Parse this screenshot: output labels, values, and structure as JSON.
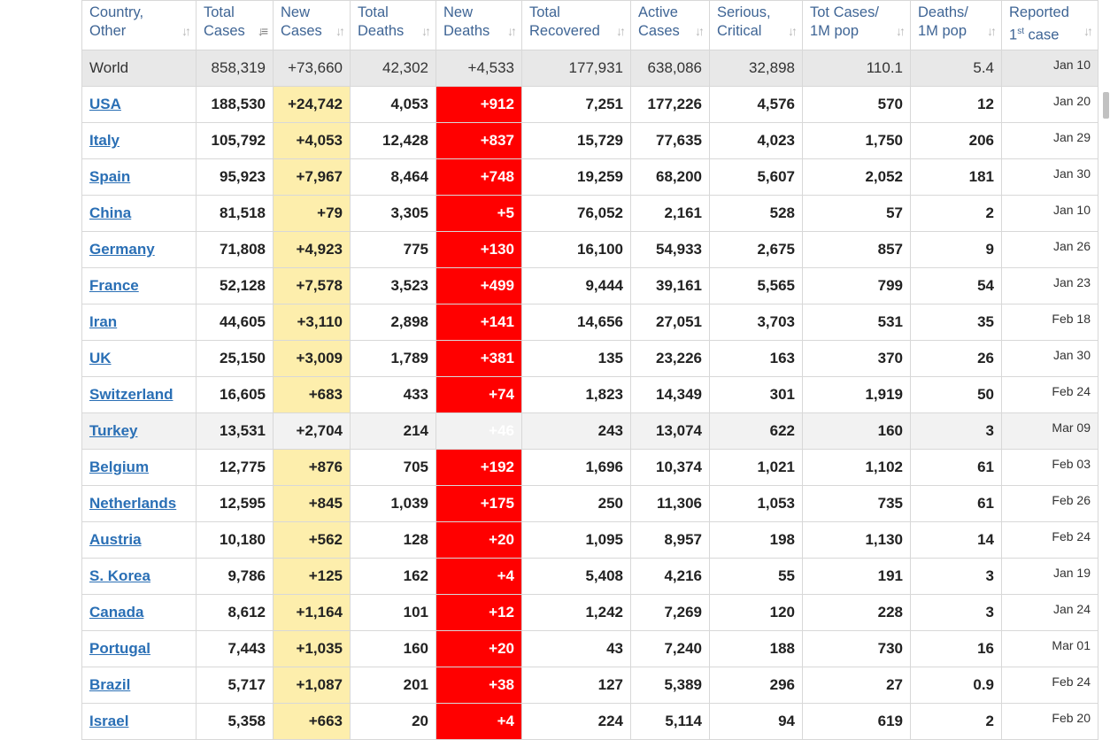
{
  "headers": [
    {
      "line1": "Country,",
      "line2": "Other",
      "sort_icon": "sort-arrows-icon"
    },
    {
      "line1": "Total",
      "line2": "Cases",
      "sort_icon": "sort-descending-icon"
    },
    {
      "line1": "New",
      "line2": "Cases",
      "sort_icon": "sort-arrows-icon"
    },
    {
      "line1": "Total",
      "line2": "Deaths",
      "sort_icon": "sort-arrows-icon"
    },
    {
      "line1": "New",
      "line2": "Deaths",
      "sort_icon": "sort-arrows-icon"
    },
    {
      "line1": "Total",
      "line2": "Recovered",
      "sort_icon": "sort-arrows-icon"
    },
    {
      "line1": "Active",
      "line2": "Cases",
      "sort_icon": "sort-arrows-icon"
    },
    {
      "line1": "Serious,",
      "line2": "Critical",
      "sort_icon": "sort-arrows-icon"
    },
    {
      "line1": "Tot Cases/",
      "line2": "1M pop",
      "sort_icon": "sort-arrows-icon"
    },
    {
      "line1": "Deaths/",
      "line2": "1M pop",
      "sort_icon": "sort-arrows-icon"
    },
    {
      "line1": "Reported",
      "line2_pre": "1",
      "line2_sup": "st",
      "line2_post": " case",
      "sort_icon": "sort-arrows-icon"
    }
  ],
  "world": [
    "World",
    "858,319",
    "+73,660",
    "42,302",
    "+4,533",
    "177,931",
    "638,086",
    "32,898",
    "110.1",
    "5.4",
    "Jan 10"
  ],
  "rows": [
    [
      "USA",
      "188,530",
      "+24,742",
      "4,053",
      "+912",
      "7,251",
      "177,226",
      "4,576",
      "570",
      "12",
      "Jan 20"
    ],
    [
      "Italy",
      "105,792",
      "+4,053",
      "12,428",
      "+837",
      "15,729",
      "77,635",
      "4,023",
      "1,750",
      "206",
      "Jan 29"
    ],
    [
      "Spain",
      "95,923",
      "+7,967",
      "8,464",
      "+748",
      "19,259",
      "68,200",
      "5,607",
      "2,052",
      "181",
      "Jan 30"
    ],
    [
      "China",
      "81,518",
      "+79",
      "3,305",
      "+5",
      "76,052",
      "2,161",
      "528",
      "57",
      "2",
      "Jan 10"
    ],
    [
      "Germany",
      "71,808",
      "+4,923",
      "775",
      "+130",
      "16,100",
      "54,933",
      "2,675",
      "857",
      "9",
      "Jan 26"
    ],
    [
      "France",
      "52,128",
      "+7,578",
      "3,523",
      "+499",
      "9,444",
      "39,161",
      "5,565",
      "799",
      "54",
      "Jan 23"
    ],
    [
      "Iran",
      "44,605",
      "+3,110",
      "2,898",
      "+141",
      "14,656",
      "27,051",
      "3,703",
      "531",
      "35",
      "Feb 18"
    ],
    [
      "UK",
      "25,150",
      "+3,009",
      "1,789",
      "+381",
      "135",
      "23,226",
      "163",
      "370",
      "26",
      "Jan 30"
    ],
    [
      "Switzerland",
      "16,605",
      "+683",
      "433",
      "+74",
      "1,823",
      "14,349",
      "301",
      "1,919",
      "50",
      "Feb 24"
    ],
    [
      "Turkey",
      "13,531",
      "+2,704",
      "214",
      "+46",
      "243",
      "13,074",
      "622",
      "160",
      "3",
      "Mar 09"
    ],
    [
      "Belgium",
      "12,775",
      "+876",
      "705",
      "+192",
      "1,696",
      "10,374",
      "1,021",
      "1,102",
      "61",
      "Feb 03"
    ],
    [
      "Netherlands",
      "12,595",
      "+845",
      "1,039",
      "+175",
      "250",
      "11,306",
      "1,053",
      "735",
      "61",
      "Feb 26"
    ],
    [
      "Austria",
      "10,180",
      "+562",
      "128",
      "+20",
      "1,095",
      "8,957",
      "198",
      "1,130",
      "14",
      "Feb 24"
    ],
    [
      "S. Korea",
      "9,786",
      "+125",
      "162",
      "+4",
      "5,408",
      "4,216",
      "55",
      "191",
      "3",
      "Jan 19"
    ],
    [
      "Canada",
      "8,612",
      "+1,164",
      "101",
      "+12",
      "1,242",
      "7,269",
      "120",
      "228",
      "3",
      "Jan 24"
    ],
    [
      "Portugal",
      "7,443",
      "+1,035",
      "160",
      "+20",
      "43",
      "7,240",
      "188",
      "730",
      "16",
      "Mar 01"
    ],
    [
      "Brazil",
      "5,717",
      "+1,087",
      "201",
      "+38",
      "127",
      "5,389",
      "296",
      "27",
      "0.9",
      "Feb 24"
    ],
    [
      "Israel",
      "5,358",
      "+663",
      "20",
      "+4",
      "224",
      "5,114",
      "94",
      "619",
      "2",
      "Feb 20"
    ]
  ],
  "hover_row": 9,
  "colors": {
    "header_text": "#3f6595",
    "link": "#2a6fb5",
    "new_cases_bg": "#fdeeac",
    "new_deaths_bg": "#ff0000",
    "world_bg": "#e8e8e8"
  }
}
